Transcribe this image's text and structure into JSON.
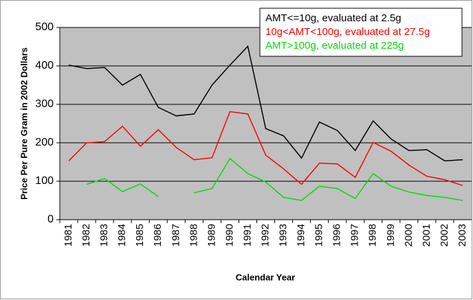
{
  "chart_data": {
    "type": "line",
    "y_axis_label": "Price Per Pure Gram in 2002 Dollars",
    "x_axis_label": "Calendar Year",
    "categories": [
      "1981",
      "1982",
      "1983",
      "1984",
      "1985",
      "1986",
      "1987",
      "1988",
      "1989",
      "1990",
      "1991",
      "1992",
      "1993",
      "1994",
      "1995",
      "1996",
      "1997",
      "1998",
      "1999",
      "2000",
      "2001",
      "2002",
      "2003"
    ],
    "series": [
      {
        "name": "AMT<=10g, evaluated at 2.5g",
        "color": "#000000",
        "values": [
          402,
          393,
          396,
          350,
          378,
          292,
          270,
          275,
          350,
          402,
          451,
          237,
          218,
          160,
          254,
          232,
          180,
          257,
          210,
          180,
          182,
          153,
          156
        ]
      },
      {
        "name": "10g<AMT<100g, evaluated at 27.5g",
        "color": "#ff0000",
        "values": [
          153,
          200,
          203,
          243,
          191,
          234,
          188,
          156,
          161,
          281,
          275,
          168,
          132,
          92,
          147,
          145,
          110,
          201,
          178,
          142,
          113,
          104,
          89
        ]
      },
      {
        "name": "AMT>100g, evaluated at 225g",
        "color": "#00dd00",
        "values": [
          null,
          92,
          107,
          73,
          93,
          60,
          null,
          70,
          81,
          159,
          120,
          98,
          58,
          50,
          87,
          81,
          55,
          120,
          87,
          72,
          63,
          58,
          50
        ]
      }
    ],
    "ylim": [
      0,
      500
    ],
    "yticks": [
      0,
      100,
      200,
      300,
      400,
      500
    ],
    "grid": true,
    "legend": "top-right"
  }
}
